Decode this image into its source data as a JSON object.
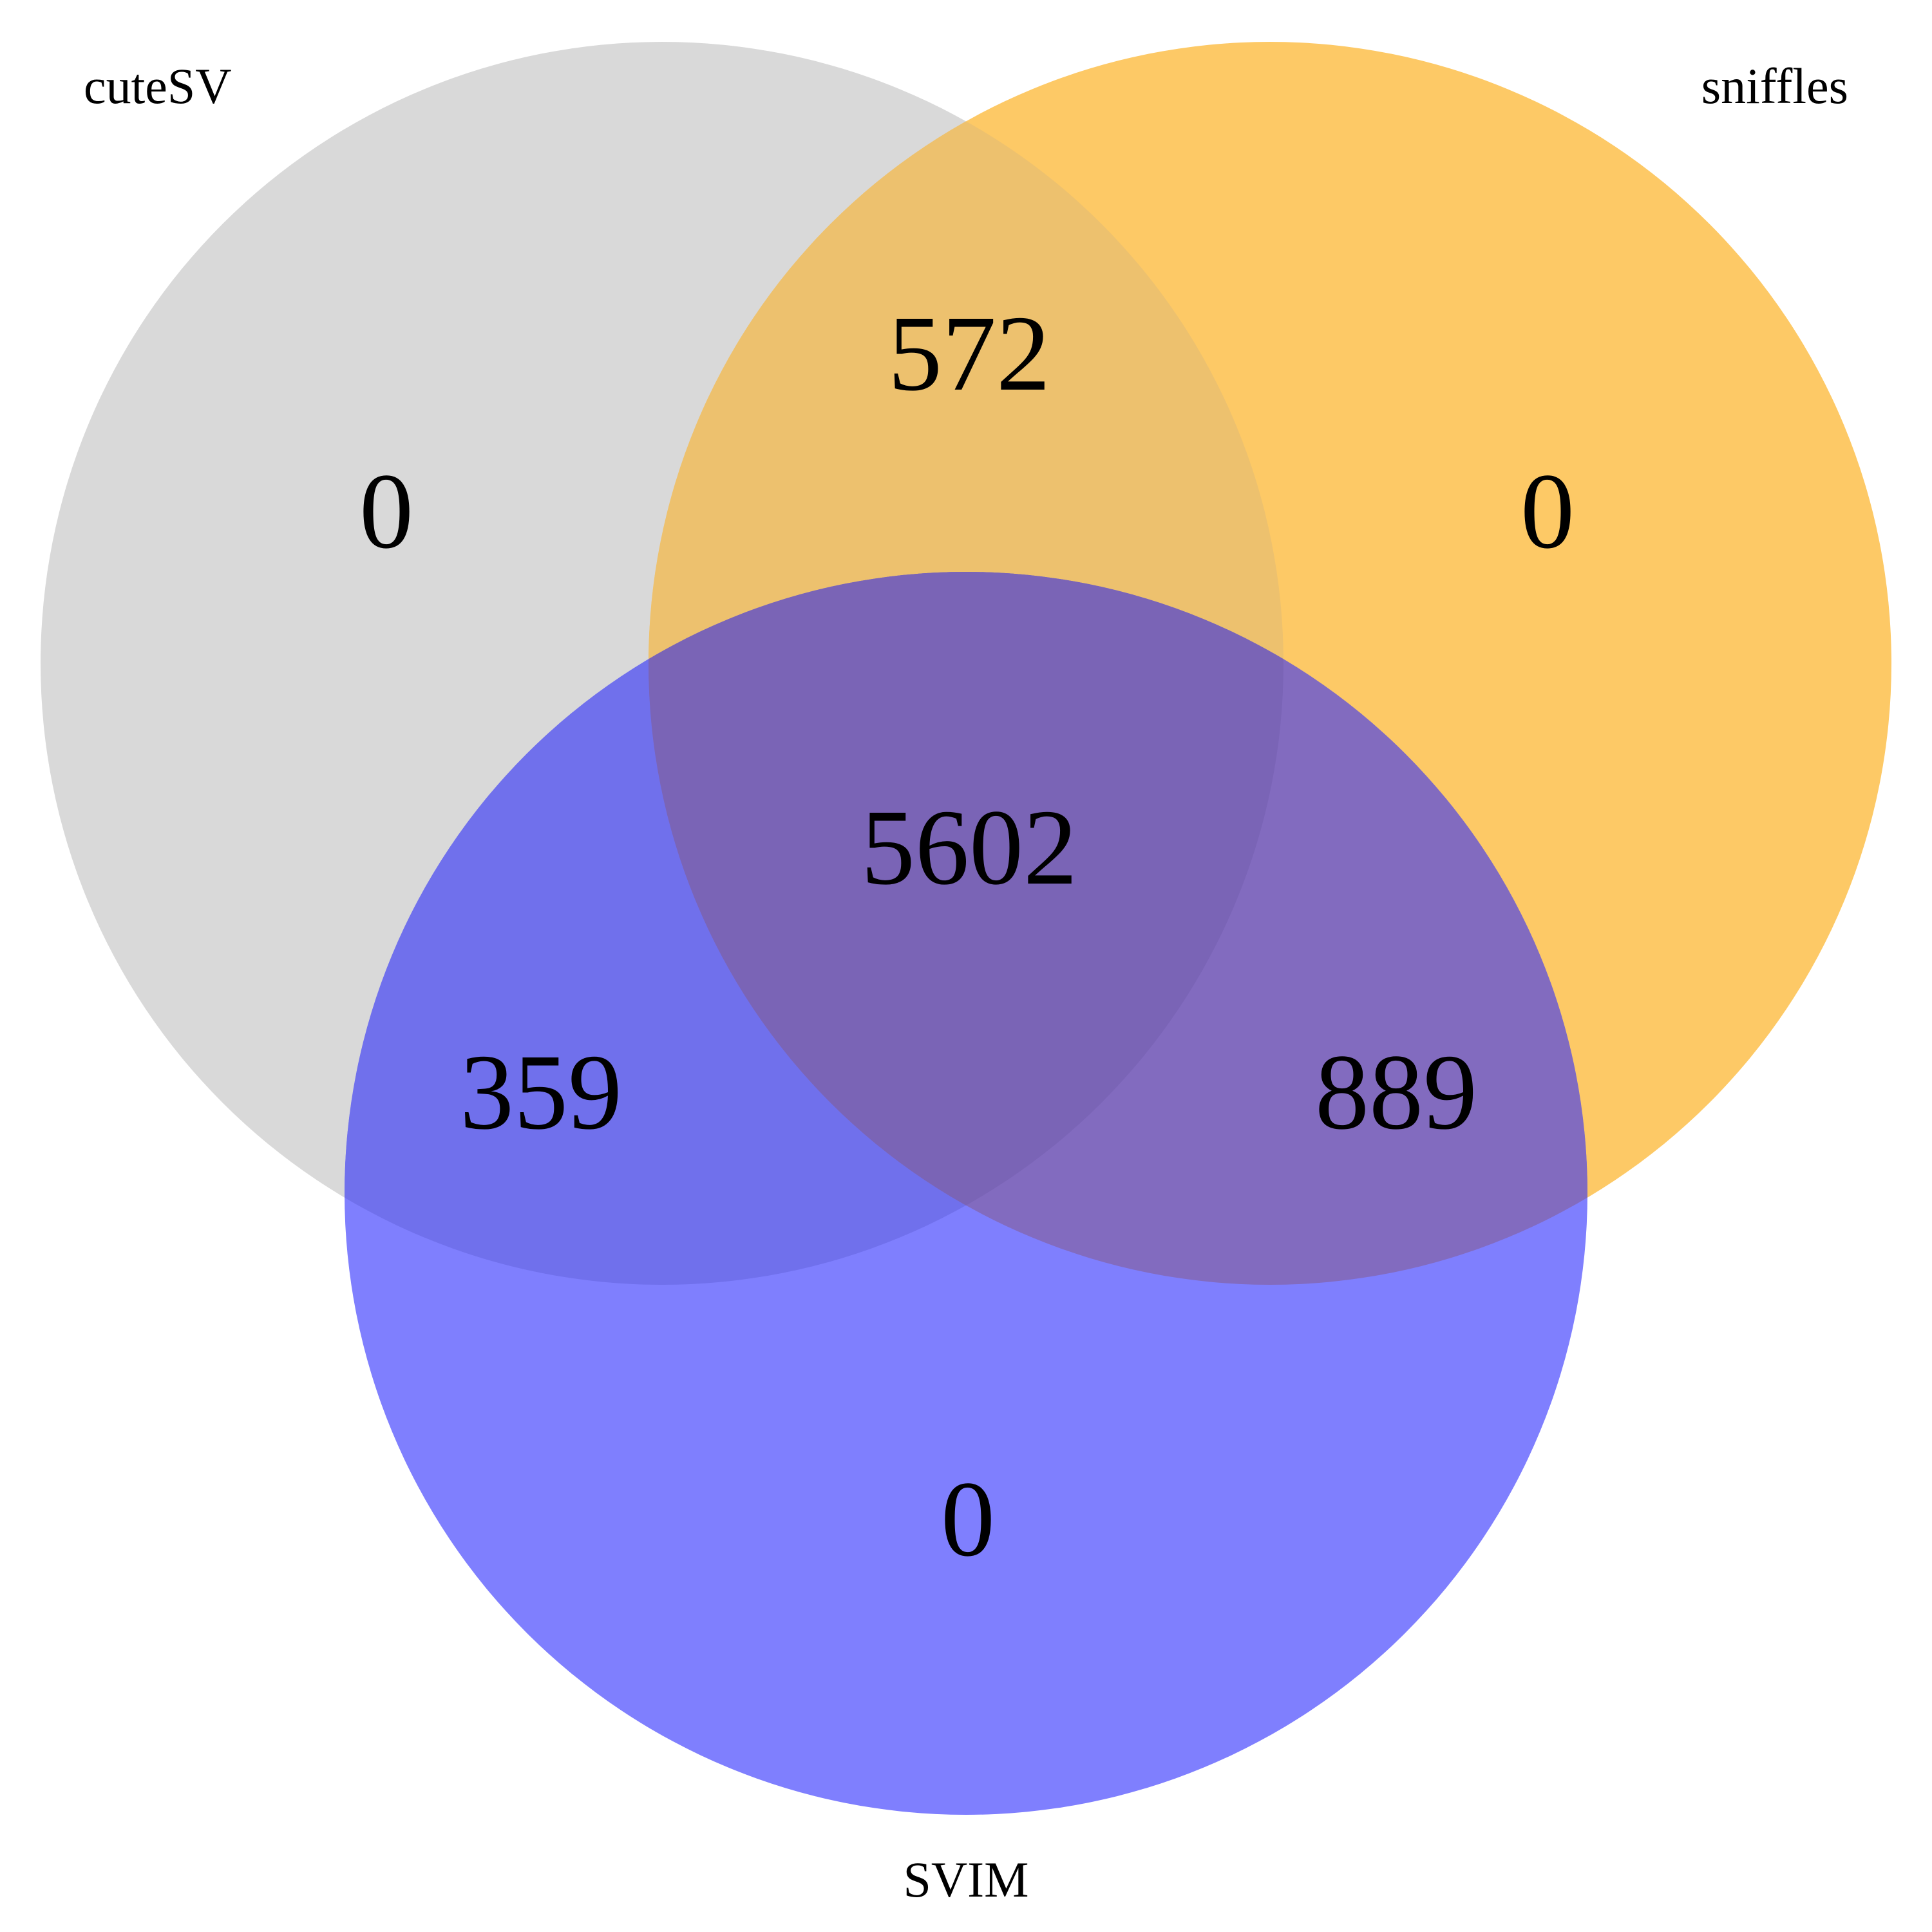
{
  "venn": {
    "sets": [
      {
        "id": "cutesv",
        "name": "cuteSV",
        "color": "#d9d9d9"
      },
      {
        "id": "sniffles",
        "name": "sniffles",
        "color": "#fdc966"
      },
      {
        "id": "svim",
        "name": "SVIM",
        "color": "#7f7ffe"
      }
    ],
    "overlap_colors": {
      "cutesv_sniffles": "#edc16e",
      "cutesv_svim": "#7070ec",
      "sniffles_svim": "#826bbf",
      "all": "#7a64b6"
    },
    "regions": {
      "cutesv_only": "0",
      "sniffles_only": "0",
      "svim_only": "0",
      "cutesv_sniffles": "572",
      "cutesv_svim": "359",
      "sniffles_svim": "889",
      "all_three": "5602"
    }
  }
}
